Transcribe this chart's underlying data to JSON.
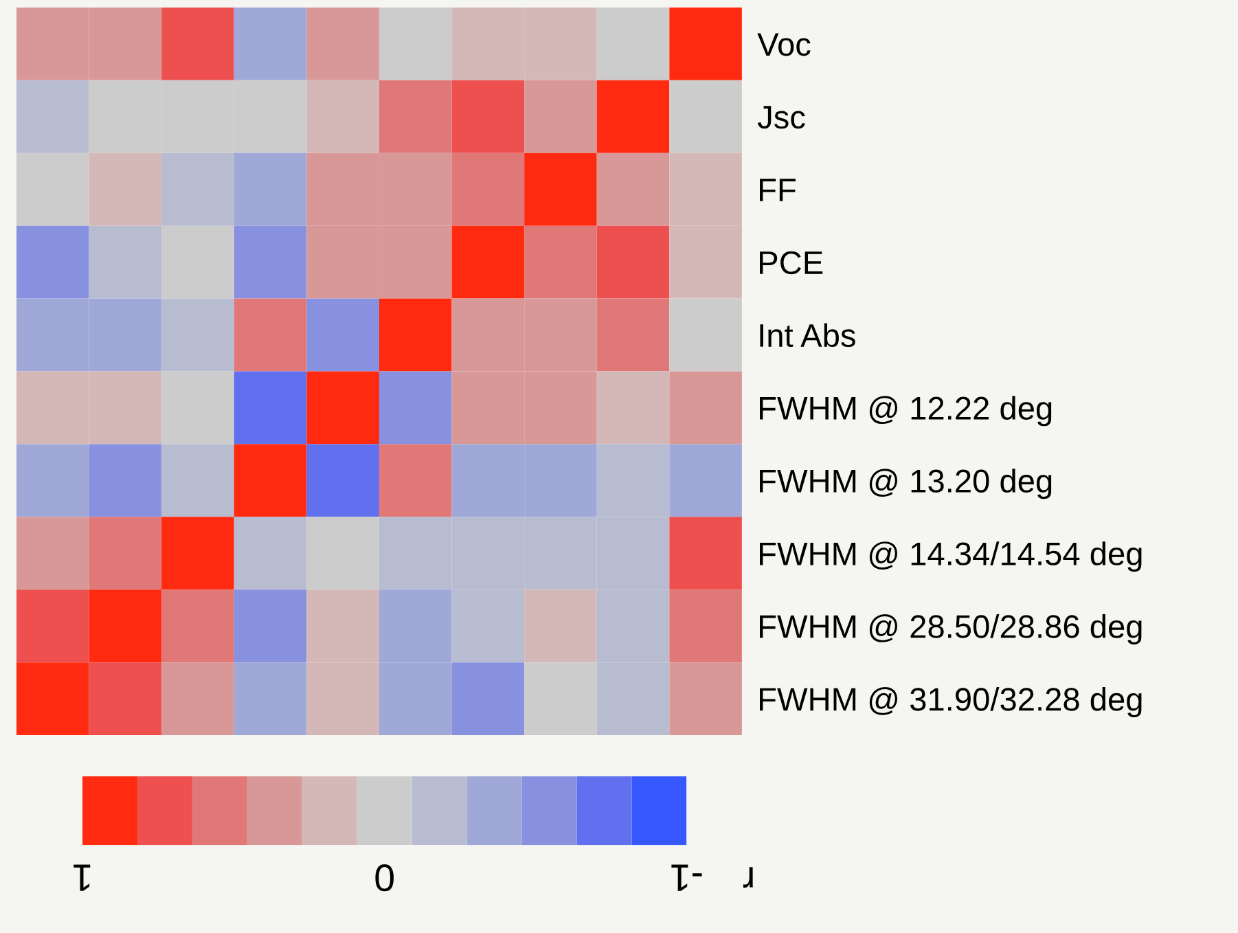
{
  "chart_data": {
    "type": "heatmap",
    "categories": [
      null,
      null,
      null,
      null,
      null,
      null,
      null,
      null,
      null,
      null
    ],
    "y_categories": [
      "Voc",
      "Jsc",
      "FF",
      "PCE",
      "Int Abs",
      "FWHM @ 12.22 deg",
      "FWHM @ 13.20 deg",
      "FWHM @ 14.34/14.54 deg",
      "FWHM @ 28.50/28.86 deg",
      "FWHM @ 31.90/32.28 deg"
    ],
    "cells": [
      [
        0.3,
        0.4,
        0.8,
        -0.3,
        0.3,
        0.0,
        0.1,
        0.1,
        0.0,
        1.0
      ],
      [
        -0.2,
        0.0,
        0.0,
        0.0,
        0.1,
        0.6,
        0.8,
        0.4,
        1.0,
        0.0
      ],
      [
        0.0,
        0.1,
        -0.2,
        -0.3,
        0.3,
        0.4,
        0.6,
        1.0,
        0.4,
        0.1
      ],
      [
        -0.5,
        -0.1,
        0.0,
        -0.5,
        0.4,
        0.3,
        1.0,
        0.6,
        0.8,
        0.1
      ],
      [
        -0.4,
        -0.4,
        -0.1,
        0.6,
        -0.5,
        1.0,
        0.3,
        0.4,
        0.6,
        0.0
      ],
      [
        0.2,
        0.1,
        0.0,
        -0.8,
        1.0,
        -0.5,
        0.4,
        0.3,
        0.1,
        0.4
      ],
      [
        -0.3,
        -0.5,
        -0.2,
        1.0,
        -0.8,
        0.6,
        -0.4,
        -0.4,
        -0.1,
        -0.3
      ],
      [
        0.4,
        0.6,
        1.0,
        -0.2,
        0.0,
        -0.1,
        -0.1,
        -0.2,
        -0.1,
        0.8
      ],
      [
        0.8,
        1.0,
        0.6,
        -0.5,
        0.2,
        -0.3,
        -0.1,
        0.1,
        -0.1,
        0.5
      ],
      [
        1.0,
        0.8,
        0.4,
        -0.3,
        0.2,
        -0.4,
        -0.5,
        0.0,
        -0.2,
        0.4
      ]
    ],
    "colors": [
      "#3858ff",
      "#6070ee",
      "#8890e0",
      "#a0a8d8",
      "#b8bcd0",
      "#cccccc",
      "#d4b8b8",
      "#d89898",
      "#e07878",
      "#ee5050",
      "#ff2a10"
    ],
    "clim": [
      1,
      -1
    ],
    "cticks": [
      1,
      0,
      -1
    ],
    "clabel": "r"
  }
}
